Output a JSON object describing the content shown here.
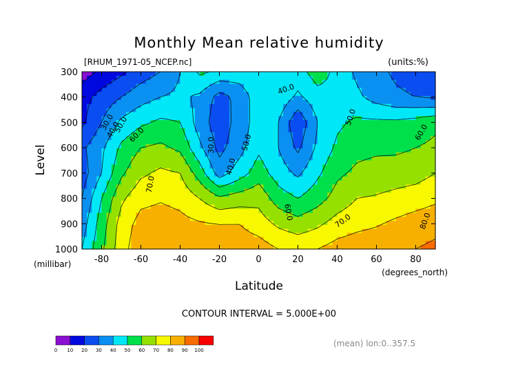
{
  "chart_data": {
    "type": "heatmap",
    "title": "Monthly Mean relative humidity",
    "file_label": "[RHUM_1971-05_NCEP.nc]",
    "units_label": "(units:%)",
    "ylabel": "Level",
    "y_units_label": "(millibar)",
    "xlabel": "Latitude",
    "x_units_label": "(degrees_north)",
    "contour_interval_text": "CONTOUR INTERVAL = 5.000E+00",
    "mean_text": "(mean) lon:0..357.5",
    "xlim": [
      -90,
      90
    ],
    "ylim": [
      1000,
      300
    ],
    "x_ticks": [
      -80,
      -60,
      -40,
      -20,
      0,
      20,
      40,
      60,
      80
    ],
    "x_tick_labels": [
      "-80",
      "-60",
      "-40",
      "-20",
      "0",
      "20",
      "40",
      "60",
      "80"
    ],
    "y_ticks": [
      300,
      400,
      500,
      600,
      700,
      800,
      900,
      1000
    ],
    "y_tick_labels": [
      "300",
      "400",
      "500",
      "600",
      "700",
      "800",
      "900",
      "1000"
    ],
    "x": [
      -90,
      -80,
      -70,
      -60,
      -50,
      -40,
      -30,
      -20,
      -10,
      0,
      10,
      20,
      30,
      40,
      50,
      60,
      70,
      80,
      90
    ],
    "y": [
      300,
      400,
      500,
      600,
      700,
      800,
      900,
      1000
    ],
    "z": [
      [
        5,
        12,
        18,
        25,
        30,
        40,
        52,
        48,
        46,
        50,
        48,
        46,
        55,
        47,
        38,
        33,
        28,
        25,
        20
      ],
      [
        16,
        24,
        30,
        36,
        40,
        42,
        38,
        26,
        33,
        46,
        47,
        38,
        46,
        48,
        42,
        36,
        32,
        30,
        28
      ],
      [
        18,
        30,
        42,
        48,
        52,
        50,
        35,
        24,
        34,
        45,
        40,
        22,
        40,
        48,
        52,
        52,
        52,
        54,
        58
      ],
      [
        28,
        38,
        52,
        60,
        62,
        58,
        42,
        27,
        36,
        48,
        40,
        28,
        42,
        52,
        57,
        58,
        58,
        60,
        62
      ],
      [
        25,
        40,
        58,
        68,
        72,
        70,
        55,
        35,
        45,
        55,
        45,
        38,
        48,
        58,
        62,
        64,
        65,
        66,
        70
      ],
      [
        30,
        50,
        68,
        77,
        79,
        77,
        70,
        62,
        65,
        67,
        55,
        50,
        56,
        64,
        70,
        71,
        73,
        75,
        78
      ],
      [
        35,
        55,
        74,
        84,
        85,
        83,
        81,
        80,
        80,
        75,
        68,
        64,
        68,
        74,
        77,
        79,
        82,
        85,
        87
      ],
      [
        40,
        58,
        76,
        87,
        90,
        88,
        86,
        86,
        86,
        85,
        80,
        78,
        80,
        84,
        86,
        87,
        88,
        90,
        92
      ]
    ],
    "contour_labels": [
      {
        "text": "30.0",
        "lat": -77,
        "lev": 500,
        "angle": -60
      },
      {
        "text": "40.0",
        "lat": -74,
        "lev": 530,
        "angle": -60
      },
      {
        "text": "50.0",
        "lat": -70,
        "lev": 510,
        "angle": -60
      },
      {
        "text": "60.0",
        "lat": -62,
        "lev": 550,
        "angle": -45
      },
      {
        "text": "70.0",
        "lat": -55,
        "lev": 745,
        "angle": -80
      },
      {
        "text": "30.0",
        "lat": -24,
        "lev": 590,
        "angle": -90
      },
      {
        "text": "40.0",
        "lat": -14,
        "lev": 675,
        "angle": -75
      },
      {
        "text": "50.0",
        "lat": -6,
        "lev": 580,
        "angle": -75
      },
      {
        "text": "40.0",
        "lat": 14,
        "lev": 370,
        "angle": -20
      },
      {
        "text": "60.0",
        "lat": 15,
        "lev": 855,
        "angle": 80
      },
      {
        "text": "50.0",
        "lat": 47,
        "lev": 480,
        "angle": -70
      },
      {
        "text": "60.0",
        "lat": 83,
        "lev": 540,
        "angle": -60
      },
      {
        "text": "70.0",
        "lat": 43,
        "lev": 890,
        "angle": -35
      },
      {
        "text": "80.0",
        "lat": 85,
        "lev": 890,
        "angle": -70
      }
    ],
    "colorbar": {
      "levels": [
        0,
        10,
        20,
        30,
        40,
        50,
        60,
        70,
        80,
        90,
        100
      ],
      "labels": [
        "0",
        "10",
        "20",
        "30",
        "40",
        "50",
        "60",
        "70",
        "80",
        "90",
        "100"
      ],
      "colors": [
        "#8a0fd0",
        "#0008e0",
        "#0a4df0",
        "#0a90f0",
        "#00e8f8",
        "#00e04a",
        "#96e000",
        "#f8f800",
        "#f8b000",
        "#f86c00",
        "#f80000"
      ]
    },
    "grid": false,
    "legend": "colorbar bottom-left"
  }
}
